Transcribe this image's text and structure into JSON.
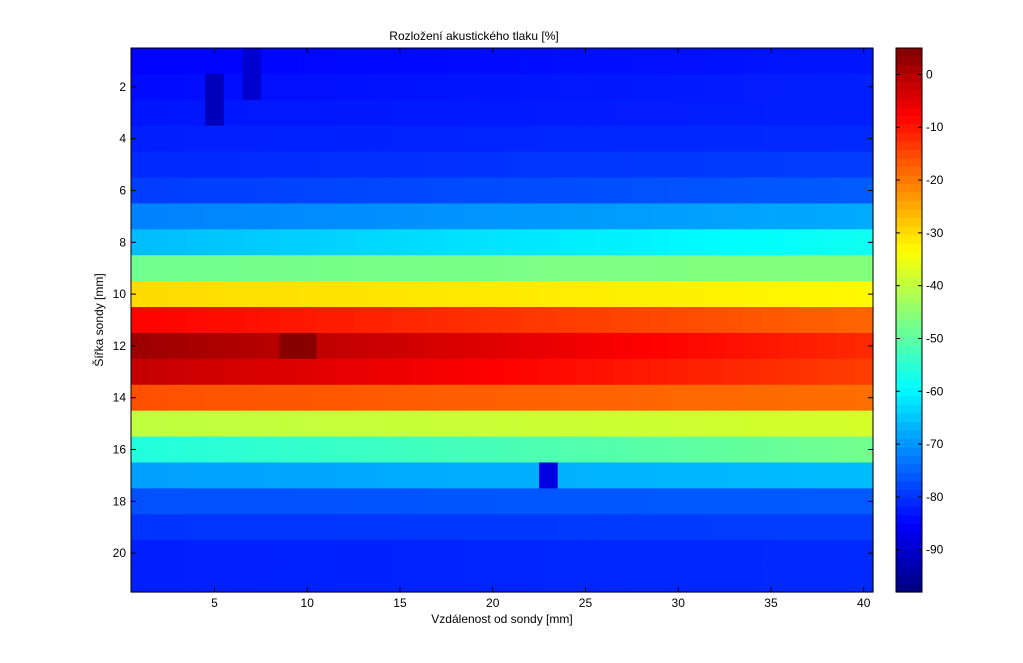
{
  "chart_data": {
    "type": "heatmap",
    "title": "Rozložení akustického tlaku [%]",
    "xlabel": "Vzdálenost od sondy [mm]",
    "ylabel": "Šířka sondy [mm]",
    "xlim": [
      0.5,
      40.5
    ],
    "ylim": [
      0.5,
      21.5
    ],
    "y_reversed": true,
    "x_ticks": [
      5,
      10,
      15,
      20,
      25,
      30,
      35,
      40
    ],
    "y_ticks": [
      2,
      4,
      6,
      8,
      10,
      12,
      14,
      16,
      18,
      20
    ],
    "colorbar": {
      "range": [
        -98,
        5
      ],
      "ticks": [
        0,
        -10,
        -20,
        -30,
        -40,
        -50,
        -60,
        -70,
        -80,
        -90
      ],
      "colormap": "jet"
    },
    "x": [
      1,
      2,
      3,
      4,
      5,
      6,
      7,
      8,
      9,
      10,
      11,
      12,
      13,
      14,
      15,
      16,
      17,
      18,
      19,
      20,
      21,
      22,
      23,
      24,
      25,
      26,
      27,
      28,
      29,
      30,
      31,
      32,
      33,
      34,
      35,
      36,
      37,
      38,
      39,
      40
    ],
    "y": [
      1,
      2,
      3,
      4,
      5,
      6,
      7,
      8,
      9,
      10,
      11,
      12,
      13,
      14,
      15,
      16,
      17,
      18,
      19,
      20,
      21
    ],
    "row_profile": [
      {
        "start": -85,
        "end": -83
      },
      {
        "start": -84,
        "end": -82
      },
      {
        "start": -83,
        "end": -82
      },
      {
        "start": -82,
        "end": -81
      },
      {
        "start": -81,
        "end": -79
      },
      {
        "start": -79,
        "end": -76
      },
      {
        "start": -72,
        "end": -68
      },
      {
        "start": -66,
        "end": -58
      },
      {
        "start": -48,
        "end": -46
      },
      {
        "start": -30,
        "end": -33
      },
      {
        "start": -8,
        "end": -18
      },
      {
        "start": 2,
        "end": -12
      },
      {
        "start": -2,
        "end": -14
      },
      {
        "start": -16,
        "end": -19
      },
      {
        "start": -40,
        "end": -38
      },
      {
        "start": -56,
        "end": -48
      },
      {
        "start": -69,
        "end": -66
      },
      {
        "start": -77,
        "end": -76
      },
      {
        "start": -80,
        "end": -79
      },
      {
        "start": -82,
        "end": -81
      },
      {
        "start": -82,
        "end": -81
      }
    ],
    "notable_cells": [
      {
        "x": 23,
        "y": 17,
        "value": -88
      },
      {
        "x": 5,
        "y": 2,
        "value": -92
      },
      {
        "x": 5,
        "y": 3,
        "value": -92
      },
      {
        "x": 7,
        "y": 1,
        "value": -90
      },
      {
        "x": 7,
        "y": 2,
        "value": -90
      },
      {
        "x": 9,
        "y": 12,
        "value": 4
      },
      {
        "x": 10,
        "y": 12,
        "value": 4
      }
    ]
  }
}
